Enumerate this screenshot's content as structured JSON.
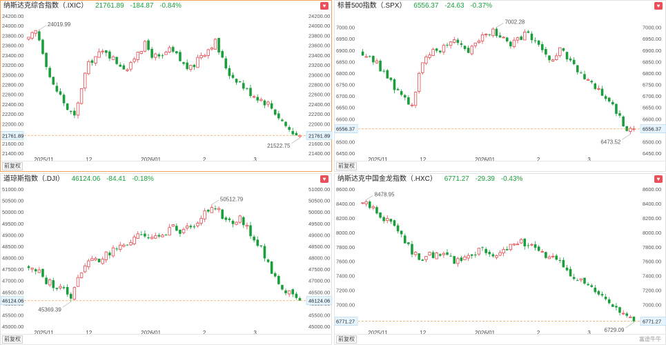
{
  "panels": [
    {
      "id": "ixic",
      "selected": true,
      "name": "纳斯达克综合指数（.IXIC）",
      "price": "21761.89",
      "change": "-184.87",
      "pct": "-0.84%",
      "adjust_label": "前复权",
      "high_label": "24019.99",
      "low_label": "21522.75",
      "price_tag": "21761.89",
      "y_ticks": [
        "24200.00",
        "24000.00",
        "23800.00",
        "23600.00",
        "23400.00",
        "23200.00",
        "23000.00",
        "22800.00",
        "22600.00",
        "22400.00",
        "22200.00",
        "22000.00",
        "21800.00",
        "21600.00",
        "21400.00"
      ],
      "x_ticks": [
        "2025/11",
        "12",
        "2026/01",
        "2",
        "3"
      ]
    },
    {
      "id": "spx",
      "selected": false,
      "name": "标普500指数（.SPX）",
      "price": "6556.37",
      "change": "-24.63",
      "pct": "-0.37%",
      "adjust_label": "前复权",
      "high_label": "7002.28",
      "low_label": "6473.52",
      "price_tag": "6556.37",
      "y_ticks": [
        "7000.00",
        "6950.00",
        "6900.00",
        "6850.00",
        "6800.00",
        "6750.00",
        "6700.00",
        "6650.00",
        "6600.00",
        "6550.00",
        "6500.00",
        "6450.00"
      ],
      "x_ticks": [
        "2025/11",
        "12",
        "2026/01",
        "2",
        "3"
      ]
    },
    {
      "id": "dji",
      "selected": false,
      "name": "道琼斯指数（.DJI）",
      "price": "46124.06",
      "change": "-84.41",
      "pct": "-0.18%",
      "adjust_label": "前复权",
      "high_label": "50512.79",
      "low_label": "45369.39",
      "price_tag": "46124.06",
      "y_ticks": [
        "51000.00",
        "50500.00",
        "50000.00",
        "49500.00",
        "49000.00",
        "48500.00",
        "48000.00",
        "47500.00",
        "47000.00",
        "46500.00",
        "46000.00",
        "45500.00",
        "45000.00"
      ],
      "x_ticks": [
        "2025/11",
        "12",
        "2026/01",
        "2",
        "3"
      ]
    },
    {
      "id": "hxc",
      "selected": false,
      "name": "纳斯达克中国金龙指数（.HXC）",
      "price": "6771.27",
      "change": "-29.39",
      "pct": "-0.43%",
      "adjust_label": "前复权",
      "high_label": "8478.95",
      "low_label": "6729.09",
      "price_tag": "6771.27",
      "y_ticks": [
        "8600.00",
        "8400.00",
        "8200.00",
        "8000.00",
        "7800.00",
        "7600.00",
        "7400.00",
        "7200.00",
        "7000.00",
        "6800.00"
      ],
      "x_ticks": [
        "2025/11",
        "12",
        "2026/01",
        "2",
        "3"
      ]
    }
  ],
  "watermark": "富途牛牛",
  "chart_data": [
    {
      "type": "candlestick",
      "title": "纳斯达克综合指数（.IXIC）",
      "ylim": [
        21400,
        24200
      ],
      "x_ticks": [
        "2025/11",
        "12",
        "2026/01",
        "2",
        "3"
      ],
      "close_path": [
        23700,
        23900,
        23400,
        22800,
        22600,
        22300,
        22100,
        22900,
        23300,
        23400,
        23500,
        23300,
        23200,
        23100,
        23500,
        23600,
        23400,
        23300,
        23500,
        23400,
        23200,
        23100,
        23400,
        23500,
        23700,
        23300,
        23000,
        22900,
        22700,
        22600,
        22500,
        22400,
        22200,
        22000,
        21800,
        21761.89
      ]
    },
    {
      "type": "candlestick",
      "title": "标普500指数（.SPX）",
      "ylim": [
        6450,
        7050
      ],
      "x_ticks": [
        "2025/11",
        "12",
        "2026/01",
        "2",
        "3"
      ],
      "close_path": [
        6890,
        6870,
        6830,
        6780,
        6730,
        6700,
        6660,
        6820,
        6870,
        6900,
        6920,
        6950,
        6930,
        6900,
        6950,
        6960,
        6990,
        6950,
        6910,
        6950,
        6980,
        6930,
        6880,
        6850,
        6900,
        6860,
        6820,
        6770,
        6750,
        6720,
        6680,
        6620,
        6560,
        6556.37
      ]
    },
    {
      "type": "candlestick",
      "title": "道琼斯指数（.DJI）",
      "ylim": [
        45000,
        51000
      ],
      "x_ticks": [
        "2025/11",
        "12",
        "2026/01",
        "2",
        "3"
      ],
      "close_path": [
        47600,
        47400,
        47000,
        46800,
        46600,
        46300,
        47400,
        47800,
        47900,
        48100,
        48300,
        48500,
        48700,
        48900,
        49000,
        48800,
        49100,
        49300,
        49000,
        49300,
        49700,
        50000,
        50300,
        49800,
        49500,
        49700,
        49200,
        48600,
        48000,
        47200,
        46700,
        46300,
        46124.06
      ]
    },
    {
      "type": "candlestick",
      "title": "纳斯达克中国金龙指数（.HXC）",
      "ylim": [
        6700,
        8600
      ],
      "x_ticks": [
        "2025/11",
        "12",
        "2026/01",
        "2",
        "3"
      ],
      "close_path": [
        8400,
        8350,
        8250,
        8150,
        8100,
        7900,
        7700,
        7600,
        7700,
        7650,
        7700,
        7600,
        7650,
        7700,
        7800,
        7700,
        7650,
        7800,
        7900,
        7850,
        7800,
        7700,
        7650,
        7600,
        7500,
        7400,
        7300,
        7200,
        7100,
        7000,
        6900,
        6850,
        6771.27
      ]
    }
  ]
}
